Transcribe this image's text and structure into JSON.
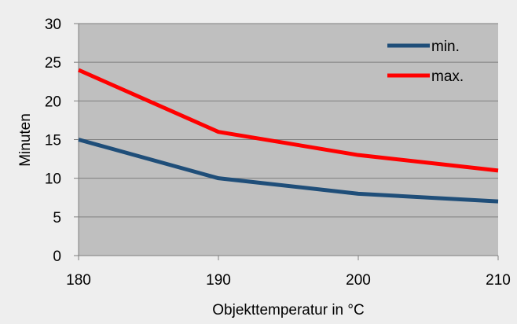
{
  "chart_data": {
    "type": "line",
    "x": [
      180,
      190,
      200,
      210
    ],
    "series": [
      {
        "name": "min.",
        "values": [
          15,
          10,
          8,
          7
        ],
        "color": "#1f4e79"
      },
      {
        "name": "max.",
        "values": [
          24,
          16,
          13,
          11
        ],
        "color": "#ff0000"
      }
    ],
    "xlabel": "Objekttemperatur in °C",
    "ylabel": "Minuten",
    "xlim": [
      180,
      210
    ],
    "ylim": [
      0,
      30
    ],
    "yticks": [
      0,
      5,
      10,
      15,
      20,
      25,
      30
    ],
    "xticks": [
      180,
      190,
      200,
      210
    ],
    "grid": true,
    "legend_position": "top-right",
    "plot_background": "#bfbfbf",
    "page_background": "#eeeeee",
    "gridline_color": "#7f7f7f"
  }
}
